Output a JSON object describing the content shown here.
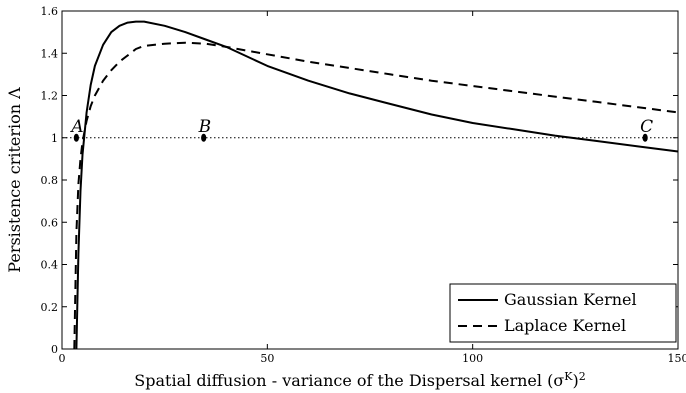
{
  "chart_data": {
    "type": "line",
    "xlabel": "Spatial diffusion - variance of the Dispersal kernel (σ",
    "xlabel_sup": "K",
    "xlabel_tail": ")",
    "xlabel_sup2": "2",
    "ylabel": "Persistence criterion Λ",
    "xlim": [
      0,
      150
    ],
    "ylim": [
      0,
      1.6
    ],
    "xticks": [
      "0",
      "50",
      "100",
      "150"
    ],
    "yticks": [
      "0",
      "0.2",
      "0.4",
      "0.6",
      "0.8",
      "1",
      "1.2",
      "1.4",
      "1.6"
    ],
    "grid": false,
    "legend_position": "bottom-right",
    "reference_line": {
      "y": 1,
      "style": "dotted"
    },
    "series": [
      {
        "name": "Gaussian Kernel",
        "style": "solid",
        "x": [
          3.5,
          4,
          4.5,
          5,
          6,
          7,
          8,
          10,
          12,
          14,
          16,
          18,
          20,
          25,
          30,
          35,
          40,
          50,
          60,
          70,
          80,
          90,
          100,
          110,
          120,
          130,
          140,
          150
        ],
        "y": [
          0.0,
          0.45,
          0.75,
          0.92,
          1.12,
          1.25,
          1.34,
          1.44,
          1.5,
          1.53,
          1.545,
          1.55,
          1.55,
          1.53,
          1.5,
          1.465,
          1.43,
          1.34,
          1.27,
          1.21,
          1.16,
          1.11,
          1.07,
          1.04,
          1.01,
          0.985,
          0.96,
          0.935
        ]
      },
      {
        "name": "Laplace Kernel",
        "style": "dashed",
        "x": [
          3,
          3.5,
          4,
          4.5,
          5,
          6,
          7,
          8,
          10,
          12,
          14,
          16,
          18,
          20,
          25,
          30,
          35,
          40,
          50,
          60,
          70,
          80,
          90,
          100,
          110,
          120,
          130,
          140,
          150
        ],
        "y": [
          0.0,
          0.55,
          0.78,
          0.9,
          0.98,
          1.08,
          1.15,
          1.2,
          1.27,
          1.32,
          1.36,
          1.39,
          1.42,
          1.435,
          1.445,
          1.45,
          1.445,
          1.43,
          1.395,
          1.36,
          1.33,
          1.3,
          1.27,
          1.245,
          1.22,
          1.195,
          1.17,
          1.145,
          1.12
        ]
      }
    ],
    "points": [
      {
        "label": "A",
        "x": 3.5,
        "y": 1
      },
      {
        "label": "B",
        "x": 34.5,
        "y": 1
      },
      {
        "label": "C",
        "x": 142,
        "y": 1
      }
    ]
  }
}
